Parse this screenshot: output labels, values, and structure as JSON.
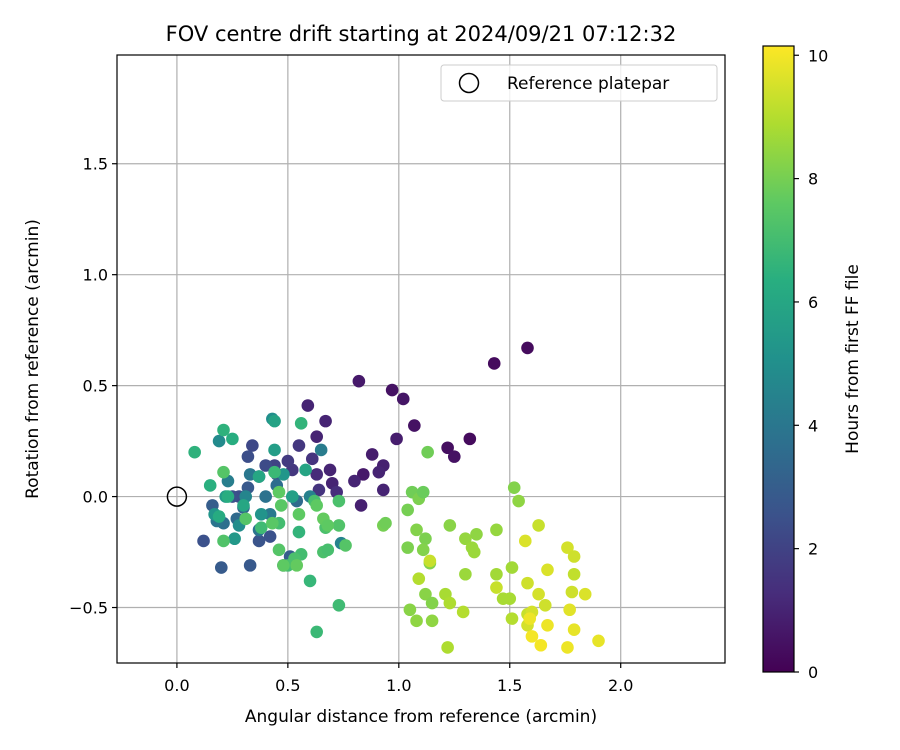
{
  "chart_data": {
    "type": "scatter",
    "title": "FOV centre drift starting at 2024/09/21 07:12:32",
    "xlabel": "Angular distance from reference (arcmin)",
    "ylabel": "Rotation from reference (arcmin)",
    "xlim": [
      -0.27,
      2.47
    ],
    "ylim": [
      -0.75,
      1.99
    ],
    "xticks": [
      0.0,
      0.5,
      1.0,
      1.5,
      2.0
    ],
    "xtick_labels": [
      "0.0",
      "0.5",
      "1.0",
      "1.5",
      "2.0"
    ],
    "yticks": [
      -0.5,
      0.0,
      0.5,
      1.0,
      1.5
    ],
    "ytick_labels": [
      "−0.5",
      "0.0",
      "0.5",
      "1.0",
      "1.5"
    ],
    "grid": true,
    "legend": {
      "position": "top-right",
      "entries": [
        "Reference platepar"
      ]
    },
    "colorbar": {
      "label": "Hours from first FF file",
      "range": [
        0,
        10.15
      ],
      "ticks": [
        0,
        2,
        4,
        6,
        8,
        10
      ],
      "tick_labels": [
        "0",
        "2",
        "4",
        "6",
        "8",
        "10"
      ],
      "colormap": "viridis"
    },
    "reference_point": {
      "x": 0.0,
      "y": 0.0
    },
    "points": [
      [
        1.58,
        0.67,
        0.3
      ],
      [
        1.43,
        0.6,
        0.3
      ],
      [
        1.32,
        0.26,
        0.3
      ],
      [
        1.22,
        0.22,
        0.4
      ],
      [
        1.25,
        0.18,
        0.5
      ],
      [
        0.97,
        0.48,
        0.5
      ],
      [
        1.02,
        0.44,
        0.6
      ],
      [
        1.07,
        0.32,
        0.5
      ],
      [
        0.99,
        0.26,
        0.8
      ],
      [
        0.82,
        0.52,
        0.7
      ],
      [
        0.88,
        0.19,
        0.8
      ],
      [
        0.93,
        0.14,
        0.9
      ],
      [
        0.91,
        0.11,
        1.0
      ],
      [
        0.84,
        0.1,
        0.7
      ],
      [
        0.8,
        0.07,
        1.0
      ],
      [
        0.93,
        0.03,
        1.0
      ],
      [
        0.83,
        -0.04,
        0.9
      ],
      [
        0.59,
        0.41,
        1.0
      ],
      [
        0.67,
        0.34,
        1.0
      ],
      [
        0.63,
        0.27,
        1.0
      ],
      [
        0.69,
        0.12,
        1.0
      ],
      [
        0.7,
        0.06,
        1.0
      ],
      [
        0.63,
        0.1,
        1.2
      ],
      [
        0.61,
        0.17,
        1.5
      ],
      [
        0.55,
        0.23,
        1.6
      ],
      [
        0.72,
        0.02,
        1.3
      ],
      [
        0.64,
        0.03,
        1.5
      ],
      [
        0.52,
        0.12,
        1.6
      ],
      [
        0.5,
        0.16,
        1.7
      ],
      [
        0.44,
        0.14,
        2.0
      ],
      [
        0.34,
        0.23,
        2.2
      ],
      [
        0.32,
        0.18,
        2.4
      ],
      [
        0.4,
        0.14,
        2.3
      ],
      [
        0.45,
        0.1,
        2.6
      ],
      [
        0.37,
        0.09,
        2.5
      ],
      [
        0.32,
        0.04,
        2.8
      ],
      [
        0.28,
        0.0,
        2.4
      ],
      [
        0.25,
        0.0,
        2.5
      ],
      [
        0.12,
        -0.2,
        2.5
      ],
      [
        0.16,
        -0.04,
        3.0
      ],
      [
        0.2,
        -0.32,
        2.9
      ],
      [
        0.33,
        -0.31,
        2.8
      ],
      [
        0.37,
        -0.2,
        2.6
      ],
      [
        0.42,
        -0.18,
        2.5
      ],
      [
        0.48,
        -0.31,
        2.8
      ],
      [
        0.51,
        -0.27,
        3.0
      ],
      [
        0.54,
        -0.02,
        3.5
      ],
      [
        0.3,
        -0.05,
        3.3
      ],
      [
        0.27,
        -0.1,
        3.5
      ],
      [
        0.21,
        -0.12,
        3.7
      ],
      [
        0.18,
        -0.11,
        3.9
      ],
      [
        0.4,
        0.0,
        3.8
      ],
      [
        0.45,
        0.05,
        3.6
      ],
      [
        0.33,
        0.1,
        4.0
      ],
      [
        0.37,
        -0.15,
        3.9
      ],
      [
        0.42,
        -0.08,
        4.1
      ],
      [
        0.65,
        0.21,
        4.2
      ],
      [
        0.6,
        0.0,
        4.4
      ],
      [
        0.74,
        -0.21,
        4.5
      ],
      [
        0.23,
        0.07,
        4.3
      ],
      [
        0.31,
        0.0,
        4.6
      ],
      [
        0.19,
        0.25,
        4.8
      ],
      [
        0.28,
        -0.13,
        4.9
      ],
      [
        0.43,
        0.35,
        5.0
      ],
      [
        0.38,
        -0.08,
        5.2
      ],
      [
        0.48,
        0.1,
        5.3
      ],
      [
        0.17,
        -0.08,
        5.3
      ],
      [
        0.22,
        0.0,
        5.5
      ],
      [
        0.26,
        -0.19,
        5.4
      ],
      [
        0.44,
        0.21,
        5.6
      ],
      [
        0.52,
        0.0,
        5.7
      ],
      [
        0.44,
        0.34,
        5.8
      ],
      [
        0.58,
        0.12,
        5.9
      ],
      [
        0.37,
        0.09,
        6.0
      ],
      [
        0.3,
        -0.04,
        6.0
      ],
      [
        0.19,
        -0.09,
        6.2
      ],
      [
        0.23,
        0.0,
        6.3
      ],
      [
        0.15,
        0.05,
        6.4
      ],
      [
        0.25,
        0.26,
        6.3
      ],
      [
        0.21,
        0.3,
        6.5
      ],
      [
        0.08,
        0.2,
        6.5
      ],
      [
        0.56,
        0.33,
        6.6
      ],
      [
        0.55,
        -0.16,
        6.6
      ],
      [
        0.6,
        -0.38,
        6.7
      ],
      [
        0.63,
        -0.61,
        6.8
      ],
      [
        0.73,
        -0.49,
        6.9
      ],
      [
        0.5,
        -0.31,
        7.0
      ],
      [
        0.44,
        0.11,
        6.8
      ],
      [
        0.46,
        -0.12,
        7.0
      ],
      [
        0.38,
        -0.14,
        6.9
      ],
      [
        0.56,
        -0.26,
        7.0
      ],
      [
        0.62,
        -0.02,
        7.1
      ],
      [
        0.73,
        -0.02,
        7.2
      ],
      [
        0.67,
        -0.14,
        7.2
      ],
      [
        0.66,
        -0.25,
        7.2
      ],
      [
        0.73,
        -0.13,
        7.3
      ],
      [
        0.68,
        -0.24,
        7.1
      ],
      [
        0.76,
        -0.22,
        7.4
      ],
      [
        0.53,
        -0.28,
        7.2
      ],
      [
        0.46,
        -0.24,
        7.4
      ],
      [
        0.21,
        -0.2,
        7.3
      ],
      [
        0.21,
        0.11,
        7.4
      ],
      [
        0.31,
        -0.1,
        7.4
      ],
      [
        0.43,
        -0.12,
        7.5
      ],
      [
        0.47,
        -0.04,
        7.5
      ],
      [
        0.46,
        0.02,
        7.6
      ],
      [
        0.48,
        -0.31,
        7.6
      ],
      [
        0.55,
        -0.08,
        7.6
      ],
      [
        0.63,
        -0.04,
        7.6
      ],
      [
        0.66,
        -0.1,
        7.7
      ],
      [
        0.68,
        -0.13,
        7.6
      ],
      [
        0.54,
        -0.31,
        7.7
      ],
      [
        0.93,
        -0.13,
        8.0
      ],
      [
        0.94,
        -0.12,
        7.9
      ],
      [
        1.04,
        -0.06,
        8.0
      ],
      [
        1.06,
        0.02,
        7.9
      ],
      [
        1.09,
        -0.01,
        8.1
      ],
      [
        1.11,
        0.02,
        7.8
      ],
      [
        1.13,
        0.2,
        7.9
      ],
      [
        1.04,
        -0.23,
        8.1
      ],
      [
        1.08,
        -0.15,
        8.2
      ],
      [
        1.12,
        -0.19,
        8.1
      ],
      [
        1.11,
        -0.24,
        8.2
      ],
      [
        1.14,
        -0.3,
        8.2
      ],
      [
        1.12,
        -0.44,
        8.3
      ],
      [
        1.15,
        -0.48,
        8.2
      ],
      [
        1.05,
        -0.51,
        8.3
      ],
      [
        1.08,
        -0.56,
        8.4
      ],
      [
        1.15,
        -0.56,
        8.4
      ],
      [
        1.23,
        -0.13,
        8.3
      ],
      [
        1.35,
        -0.17,
        8.4
      ],
      [
        1.44,
        -0.15,
        8.5
      ],
      [
        1.52,
        0.04,
        8.2
      ],
      [
        1.54,
        -0.02,
        8.4
      ],
      [
        1.3,
        -0.19,
        8.5
      ],
      [
        1.33,
        -0.23,
        8.6
      ],
      [
        1.34,
        -0.25,
        8.6
      ],
      [
        1.3,
        -0.35,
        8.6
      ],
      [
        1.44,
        -0.35,
        8.7
      ],
      [
        1.51,
        -0.32,
        8.7
      ],
      [
        1.5,
        -0.46,
        8.8
      ],
      [
        1.47,
        -0.46,
        8.8
      ],
      [
        1.21,
        -0.44,
        8.8
      ],
      [
        1.23,
        -0.48,
        8.9
      ],
      [
        1.29,
        -0.52,
        9.0
      ],
      [
        1.51,
        -0.55,
        9.0
      ],
      [
        1.22,
        -0.68,
        8.9
      ],
      [
        1.09,
        -0.37,
        9.0
      ],
      [
        1.14,
        -0.29,
        9.3
      ],
      [
        1.44,
        -0.41,
        9.3
      ],
      [
        1.58,
        -0.39,
        9.4
      ],
      [
        1.58,
        -0.53,
        9.3
      ],
      [
        1.58,
        -0.58,
        9.5
      ],
      [
        1.6,
        -0.52,
        9.5
      ],
      [
        1.63,
        -0.44,
        9.5
      ],
      [
        1.66,
        -0.49,
        9.4
      ],
      [
        1.63,
        -0.13,
        9.3
      ],
      [
        1.57,
        -0.2,
        9.6
      ],
      [
        1.67,
        -0.33,
        9.6
      ],
      [
        1.76,
        -0.23,
        9.5
      ],
      [
        1.79,
        -0.27,
        9.4
      ],
      [
        1.79,
        -0.35,
        9.2
      ],
      [
        1.78,
        -0.43,
        9.4
      ],
      [
        1.84,
        -0.44,
        9.6
      ],
      [
        1.77,
        -0.51,
        9.7
      ],
      [
        1.79,
        -0.6,
        9.8
      ],
      [
        1.9,
        -0.65,
        9.8
      ],
      [
        1.76,
        -0.68,
        9.9
      ],
      [
        1.67,
        -0.58,
        9.9
      ],
      [
        1.64,
        -0.67,
        10.0
      ],
      [
        1.6,
        -0.63,
        10.0
      ],
      [
        1.59,
        -0.55,
        9.9
      ]
    ]
  }
}
